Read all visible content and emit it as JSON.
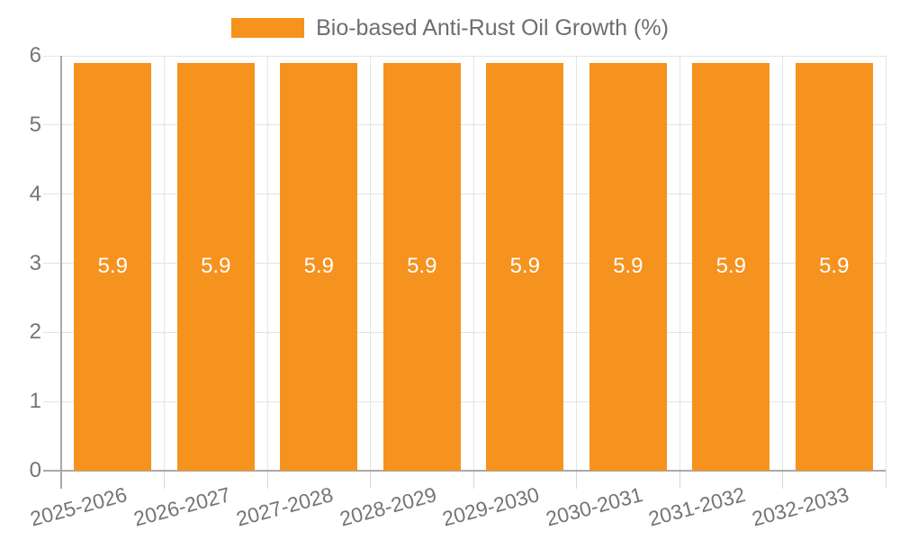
{
  "chart_data": {
    "type": "bar",
    "title": "",
    "xlabel": "",
    "ylabel": "",
    "categories": [
      "2025-2026",
      "2026-2027",
      "2027-2028",
      "2028-2029",
      "2029-2030",
      "2030-2031",
      "2031-2032",
      "2032-2033"
    ],
    "series": [
      {
        "name": "Bio-based Anti-Rust Oil Growth (%)",
        "values": [
          5.9,
          5.9,
          5.9,
          5.9,
          5.9,
          5.9,
          5.9,
          5.9
        ],
        "color": "#F6921E"
      }
    ],
    "bar_value_labels": [
      "5.9",
      "5.9",
      "5.9",
      "5.9",
      "5.9",
      "5.9",
      "5.9",
      "5.9"
    ],
    "ylim": [
      0,
      6
    ],
    "yticks": [
      0,
      1,
      2,
      3,
      4,
      5,
      6
    ],
    "ytick_labels": [
      "0",
      "1",
      "2",
      "3",
      "4",
      "5",
      "6"
    ],
    "grid": true,
    "legend_position": "top-center",
    "legend": {
      "label": "Bio-based Anti-Rust Oil Growth (%)",
      "swatch_color": "#F6921E"
    },
    "colors": {
      "bar": "#F6921E",
      "gridline": "#E4E4E4",
      "axis_line": "#A9A9A9",
      "x_tick": "#D8D8D8",
      "axis_text": "#757575",
      "legend_text": "#6E6E6E",
      "value_label_text": "#FFFFFF",
      "background": "#FFFFFF"
    }
  }
}
